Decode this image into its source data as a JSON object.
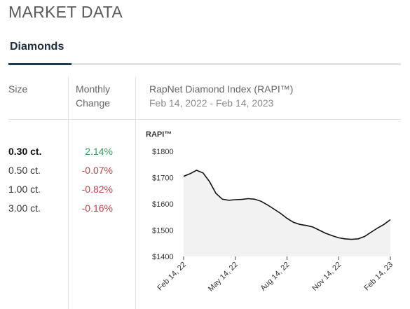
{
  "header": {
    "title": "MARKET DATA"
  },
  "tabs": [
    {
      "label": "Diamonds",
      "active": true
    }
  ],
  "table": {
    "columns": {
      "size": "Size",
      "change": "Monthly Change",
      "index_title": "RapNet Diamond Index (RAPI™)",
      "index_range": "Feb 14, 2022 - Feb 14, 2023"
    },
    "rows": [
      {
        "size": "0.30 ct.",
        "change": "2.14%",
        "direction": "up",
        "selected": true
      },
      {
        "size": "0.50 ct.",
        "change": "-0.07%",
        "direction": "down",
        "selected": false
      },
      {
        "size": "1.00 ct.",
        "change": "-0.82%",
        "direction": "down",
        "selected": false
      },
      {
        "size": "3.00 ct.",
        "change": "-0.16%",
        "direction": "down",
        "selected": false
      }
    ]
  },
  "colors": {
    "positive": "#3f9a5b",
    "negative": "#b0474b",
    "tab_active": "#1d3a52",
    "line": "#111111",
    "area": "#f2f2f2"
  },
  "chart_data": {
    "type": "area",
    "title": "",
    "ylabel": "RAPI™",
    "xlabel": "",
    "ylim": [
      1400,
      1800
    ],
    "yticks": [
      1800,
      1700,
      1600,
      1500,
      1400
    ],
    "ytick_labels": [
      "$1800",
      "$1700",
      "$1600",
      "$1500",
      "$1400"
    ],
    "xticks": [
      "Feb 14, 22",
      "May 14, 22",
      "Aug 14, 22",
      "Nov 14, 22",
      "Feb 14, 23"
    ],
    "grid": false,
    "series": [
      {
        "values": [
          1705,
          1715,
          1728,
          1718,
          1685,
          1640,
          1618,
          1614,
          1616,
          1617,
          1620,
          1618,
          1610,
          1596,
          1580,
          1564,
          1545,
          1530,
          1522,
          1518,
          1512,
          1500,
          1488,
          1479,
          1471,
          1467,
          1465,
          1467,
          1476,
          1492,
          1508,
          1522,
          1540
        ]
      }
    ]
  }
}
